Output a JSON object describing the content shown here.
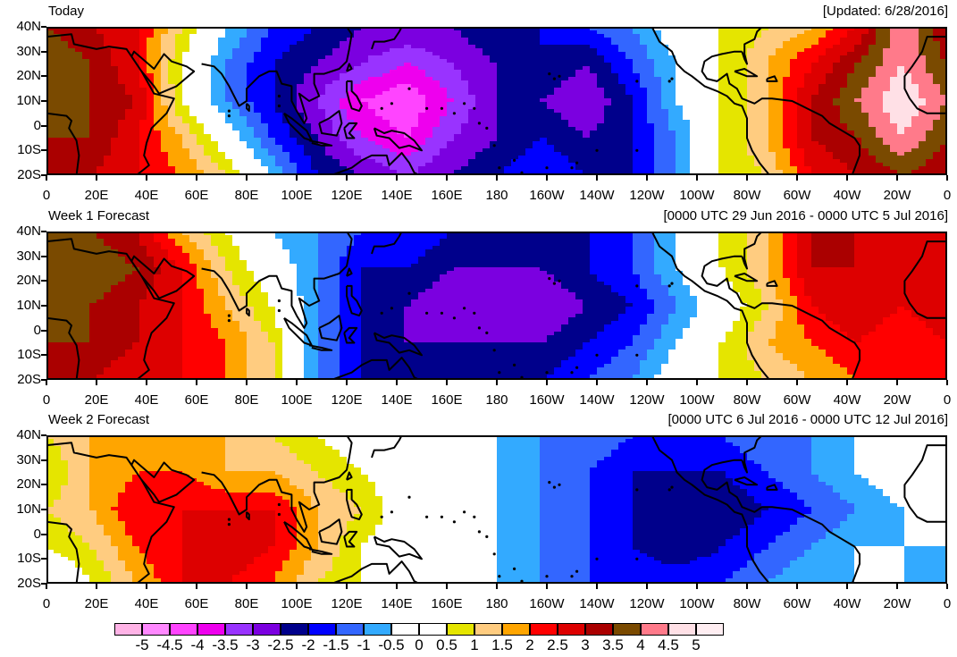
{
  "panels": [
    {
      "title_left": "Today",
      "title_right": "[Updated: 6/28/2016]",
      "field": [
        [
          3.5,
          3.0,
          2.5,
          1.0,
          -0.5,
          -1.5,
          -2.0,
          -2.5,
          -2.5,
          -2.5,
          -2.0,
          -2.0,
          -1.5,
          -1.0,
          0.0,
          0.5,
          1.0,
          1.5,
          2.5,
          4.5,
          3.0
        ],
        [
          4.0,
          3.5,
          2.5,
          0.5,
          -1.0,
          -2.0,
          -2.5,
          -3.0,
          -3.5,
          -3.0,
          -2.5,
          -2.0,
          -2.5,
          -1.5,
          -0.5,
          0.5,
          1.5,
          2.5,
          3.5,
          4.5,
          3.5
        ],
        [
          4.0,
          3.5,
          3.0,
          0.5,
          -1.0,
          -2.0,
          -3.0,
          -4.0,
          -4.5,
          -3.5,
          -2.5,
          -2.5,
          -3.0,
          -2.0,
          -0.5,
          0.5,
          1.5,
          3.0,
          4.0,
          5.0,
          4.0
        ],
        [
          3.5,
          3.5,
          2.5,
          1.5,
          0.0,
          -1.5,
          -2.5,
          -3.5,
          -4.0,
          -3.0,
          -2.5,
          -2.0,
          -2.5,
          -2.0,
          -1.0,
          0.5,
          1.5,
          3.0,
          3.5,
          4.5,
          3.5
        ],
        [
          3.0,
          3.0,
          2.5,
          2.0,
          1.0,
          -0.5,
          -2.0,
          -2.5,
          -3.0,
          -2.5,
          -2.0,
          -1.5,
          -2.0,
          -2.0,
          -1.0,
          0.5,
          1.0,
          2.5,
          3.0,
          3.5,
          3.0
        ]
      ]
    },
    {
      "title_left": "Week 1 Forecast",
      "title_right": "[0000 UTC 29 Jun 2016 - 0000 UTC 5 Jul 2016]",
      "field": [
        [
          3.5,
          3.5,
          3.0,
          1.5,
          0.5,
          -0.5,
          -1.0,
          -1.5,
          -1.5,
          -2.0,
          -2.0,
          -2.0,
          -2.0,
          -1.5,
          -0.5,
          0.5,
          1.5,
          3.0,
          3.0,
          2.5,
          3.0
        ],
        [
          4.0,
          4.0,
          3.5,
          2.5,
          1.0,
          0.0,
          -1.0,
          -2.0,
          -2.0,
          -2.5,
          -2.5,
          -2.5,
          -2.0,
          -1.5,
          -0.5,
          0.5,
          1.5,
          3.0,
          3.0,
          2.5,
          3.0
        ],
        [
          4.0,
          3.5,
          3.0,
          2.5,
          1.5,
          0.5,
          -1.0,
          -2.0,
          -2.5,
          -3.0,
          -3.0,
          -3.0,
          -2.5,
          -2.0,
          -1.0,
          0.0,
          1.0,
          2.5,
          3.0,
          2.5,
          3.0
        ],
        [
          3.5,
          3.5,
          3.0,
          2.5,
          2.0,
          1.0,
          -1.0,
          -2.0,
          -2.5,
          -2.5,
          -2.5,
          -2.5,
          -2.0,
          -1.5,
          -0.5,
          0.5,
          1.5,
          2.0,
          2.5,
          2.0,
          2.5
        ],
        [
          3.0,
          3.0,
          2.5,
          2.5,
          2.0,
          1.0,
          -1.0,
          -2.0,
          -2.0,
          -2.0,
          -2.0,
          -2.0,
          -1.5,
          -1.0,
          0.0,
          0.5,
          1.0,
          1.5,
          2.0,
          2.0,
          2.5
        ]
      ]
    },
    {
      "title_left": "Week 2 Forecast",
      "title_right": "[0000 UTC 6 Jul 2016 - 0000 UTC 12 Jul 2016]",
      "field": [
        [
          1.0,
          1.5,
          1.5,
          1.5,
          1.5,
          1.0,
          0.5,
          0.0,
          -0.5,
          -0.5,
          -0.5,
          -1.0,
          -1.0,
          -1.5,
          -1.5,
          -1.5,
          -1.0,
          -1.0,
          -0.5,
          0.0,
          0.5
        ],
        [
          0.5,
          1.5,
          2.0,
          2.0,
          1.5,
          1.5,
          1.0,
          0.5,
          0.0,
          -0.5,
          -0.5,
          -1.0,
          -1.5,
          -2.0,
          -2.0,
          -2.0,
          -1.5,
          -1.0,
          -0.5,
          0.0,
          0.5
        ],
        [
          1.0,
          1.5,
          2.5,
          2.5,
          2.5,
          2.5,
          1.5,
          1.0,
          0.0,
          0.0,
          -0.5,
          -1.0,
          -1.5,
          -2.0,
          -2.5,
          -2.5,
          -2.0,
          -1.5,
          -1.0,
          -0.5,
          0.0
        ],
        [
          0.5,
          1.0,
          2.0,
          2.5,
          3.0,
          2.5,
          1.5,
          0.5,
          0.0,
          0.0,
          -0.5,
          -1.0,
          -1.5,
          -2.0,
          -2.5,
          -2.0,
          -1.5,
          -1.0,
          -0.5,
          -0.5,
          -0.5
        ],
        [
          -0.5,
          0.5,
          1.5,
          2.5,
          2.5,
          2.0,
          1.0,
          0.5,
          0.0,
          0.0,
          -0.5,
          -1.0,
          -1.5,
          -1.5,
          -1.5,
          -1.5,
          -1.0,
          -0.5,
          -0.5,
          -0.5,
          -1.0
        ]
      ]
    }
  ],
  "y_labels": [
    "40N",
    "30N",
    "20N",
    "10N",
    "0",
    "10S",
    "20S"
  ],
  "x_labels": [
    "0",
    "20E",
    "40E",
    "60E",
    "80E",
    "100E",
    "120E",
    "140E",
    "160E",
    "180",
    "160W",
    "140W",
    "120W",
    "100W",
    "80W",
    "60W",
    "40W",
    "20W",
    "0"
  ],
  "legend": {
    "labels": [
      "-5",
      "-4.5",
      "-4",
      "-3.5",
      "-3",
      "-2.5",
      "-2",
      "-1.5",
      "-1",
      "-0.5",
      "0",
      "0.5",
      "1",
      "1.5",
      "2",
      "2.5",
      "3",
      "3.5",
      "4",
      "4.5",
      "5"
    ],
    "colors": [
      "#ffb3e6",
      "#ff88ff",
      "#ff44ff",
      "#ee00ee",
      "#9933ff",
      "#7b00e0",
      "#00008b",
      "#0000ff",
      "#3366ff",
      "#33aaff",
      "#ffffff",
      "#ffffff",
      "#e5e500",
      "#ffcc80",
      "#ffa500",
      "#ff0000",
      "#dd0000",
      "#aa0000",
      "#7a4a00",
      "#ff7a8a",
      "#ffe0e6",
      "#ffeef2"
    ]
  },
  "levels": [
    -5,
    -4.5,
    -4,
    -3.5,
    -3,
    -2.5,
    -2,
    -1.5,
    -1,
    -0.5,
    0,
    0.5,
    1,
    1.5,
    2,
    2.5,
    3,
    3.5,
    4,
    4.5,
    5
  ],
  "colors": {
    "coast": "#000000",
    "border": "#000000"
  }
}
